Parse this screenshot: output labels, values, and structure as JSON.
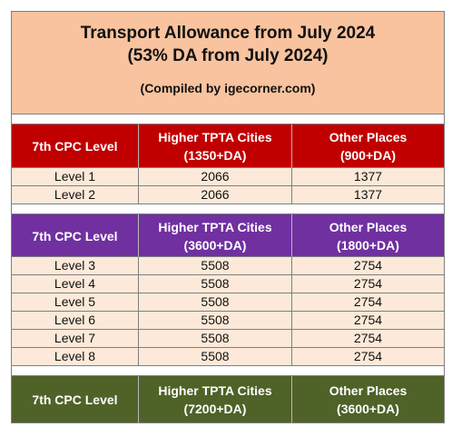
{
  "title": {
    "line1": "Transport Allowance from July 2024",
    "line2": "(53% DA from July 2024)",
    "compiled": "(Compiled by igecorner.com)"
  },
  "colors": {
    "title_bg": "#f8c39e",
    "row_bg": "#fde9d9",
    "red": "#c00000",
    "purple": "#7030a0",
    "green": "#4f6228"
  },
  "section1": {
    "header": {
      "col1": "7th CPC Level",
      "col2_line1": "Higher TPTA Cities",
      "col2_line2": "(1350+DA)",
      "col3_line1": "Other Places",
      "col3_line2": "(900+DA)"
    },
    "rows": [
      {
        "level": "Level 1",
        "higher": "2066",
        "other": "1377"
      },
      {
        "level": "Level 2",
        "higher": "2066",
        "other": "1377"
      }
    ]
  },
  "section2": {
    "header": {
      "col1": "7th CPC Level",
      "col2_line1": "Higher TPTA Cities",
      "col2_line2": "(3600+DA)",
      "col3_line1": "Other Places",
      "col3_line2": "(1800+DA)"
    },
    "rows": [
      {
        "level": "Level 3",
        "higher": "5508",
        "other": "2754"
      },
      {
        "level": "Level 4",
        "higher": "5508",
        "other": "2754"
      },
      {
        "level": "Level 5",
        "higher": "5508",
        "other": "2754"
      },
      {
        "level": "Level 6",
        "higher": "5508",
        "other": "2754"
      },
      {
        "level": "Level 7",
        "higher": "5508",
        "other": "2754"
      },
      {
        "level": "Level 8",
        "higher": "5508",
        "other": "2754"
      }
    ]
  },
  "section3": {
    "header": {
      "col1": "7th CPC Level",
      "col2_line1": "Higher TPTA Cities",
      "col2_line2": "(7200+DA)",
      "col3_line1": "Other Places",
      "col3_line2": "(3600+DA)"
    }
  }
}
